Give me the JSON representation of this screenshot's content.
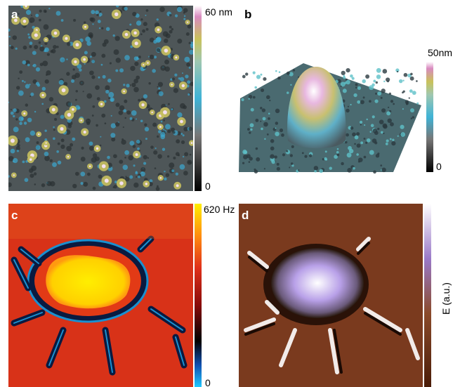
{
  "panels": [
    {
      "label": "a",
      "colorbar": {
        "top": "60 nm",
        "bottom": "0"
      }
    },
    {
      "label": "b",
      "colorbar": {
        "top": "50nm",
        "bottom": "0"
      }
    },
    {
      "label": "c",
      "colorbar": {
        "top": "620 Hz",
        "bottom": "0"
      }
    },
    {
      "label": "d",
      "colorbar": {
        "title": "E (a.u.)"
      }
    }
  ]
}
